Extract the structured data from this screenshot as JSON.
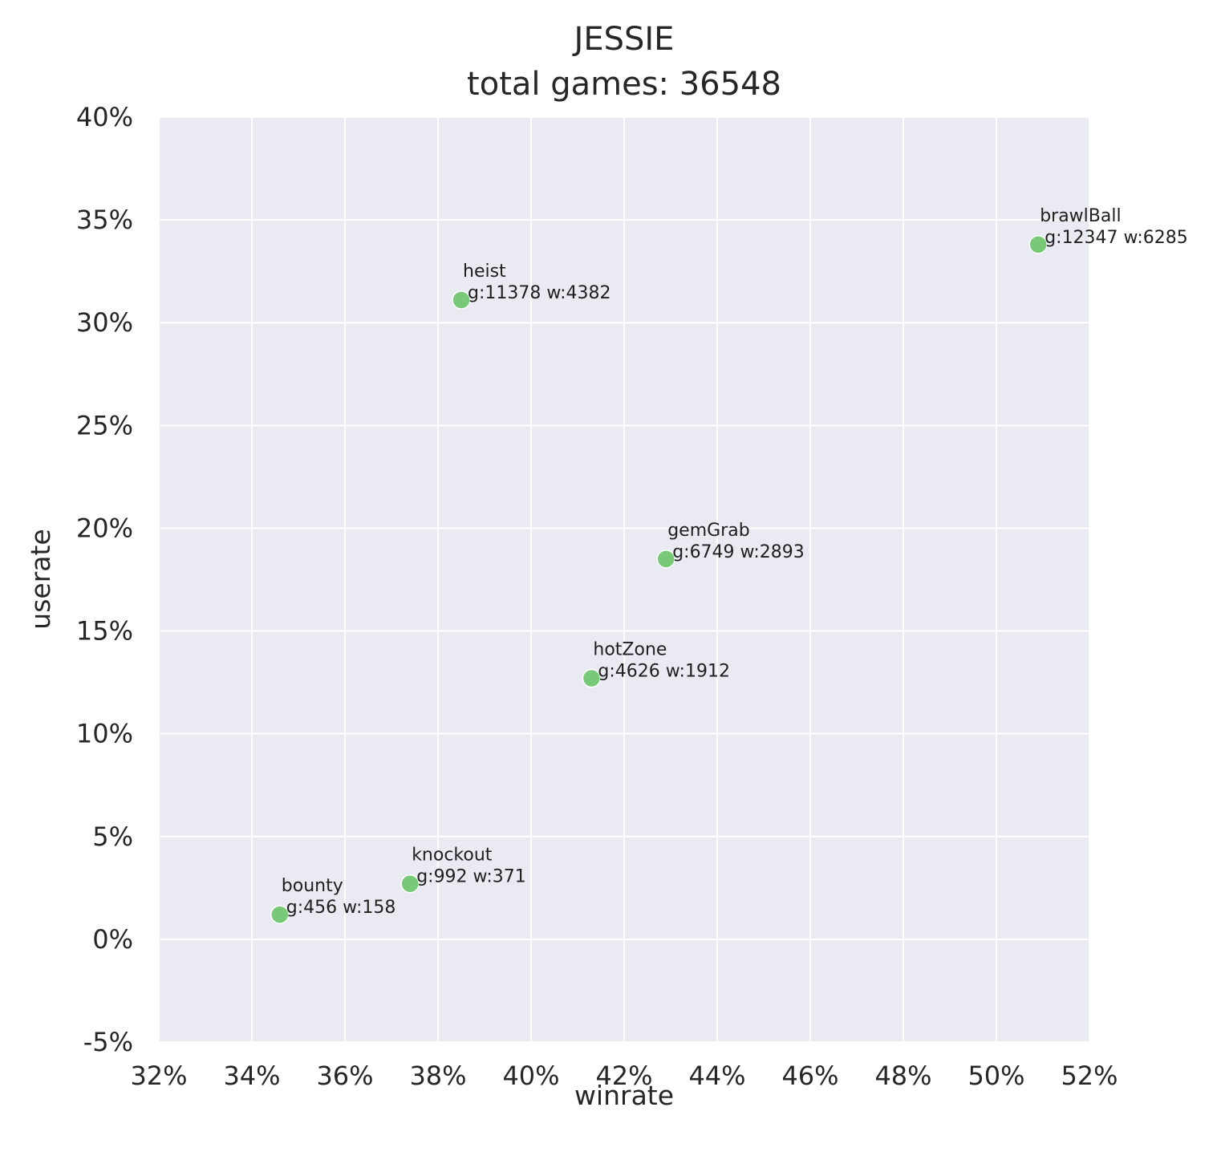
{
  "chart_data": {
    "type": "scatter",
    "title": "JESSIE",
    "subtitle": "total games: 36548",
    "xlabel": "winrate",
    "ylabel": "userate",
    "xlim": [
      0.32,
      0.52
    ],
    "ylim": [
      -0.05,
      0.4
    ],
    "xticks": [
      0.32,
      0.34,
      0.36,
      0.38,
      0.4,
      0.42,
      0.44,
      0.46,
      0.48,
      0.5,
      0.52
    ],
    "xtick_labels": [
      "32%",
      "34%",
      "36%",
      "38%",
      "40%",
      "42%",
      "44%",
      "46%",
      "48%",
      "50%",
      "52%"
    ],
    "yticks": [
      -0.05,
      0.0,
      0.05,
      0.1,
      0.15,
      0.2,
      0.25,
      0.3,
      0.35,
      0.4
    ],
    "ytick_labels": [
      "-5%",
      "0%",
      "5%",
      "10%",
      "15%",
      "20%",
      "25%",
      "30%",
      "35%",
      "40%"
    ],
    "grid": true,
    "background": "#eaeaf2",
    "point_color": "#77c977",
    "points": [
      {
        "mode": "brawlBall",
        "detail": "g:12347 w:6285",
        "x": 0.509,
        "y": 0.338
      },
      {
        "mode": "heist",
        "detail": "g:11378 w:4382",
        "x": 0.385,
        "y": 0.311
      },
      {
        "mode": "gemGrab",
        "detail": "g:6749 w:2893",
        "x": 0.429,
        "y": 0.185
      },
      {
        "mode": "hotZone",
        "detail": "g:4626 w:1912",
        "x": 0.413,
        "y": 0.127
      },
      {
        "mode": "knockout",
        "detail": "g:992 w:371",
        "x": 0.374,
        "y": 0.027
      },
      {
        "mode": "bounty",
        "detail": "g:456 w:158",
        "x": 0.346,
        "y": 0.012
      }
    ]
  }
}
